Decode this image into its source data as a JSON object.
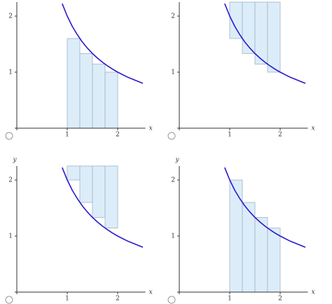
{
  "chart_data": [
    {
      "type": "riemann",
      "x_label": "x",
      "xlim": [
        0,
        2.55
      ],
      "ylim": [
        0,
        2.25
      ],
      "xticks": [
        1,
        2
      ],
      "yticks": [
        1,
        2
      ],
      "bars": {
        "x": [
          1,
          1.25,
          1.5,
          1.75
        ],
        "width": 0.25,
        "values": [
          1.6,
          1.333,
          1.143,
          1
        ],
        "shade": "below",
        "color": "#dcedf9"
      },
      "curve": {
        "x": [
          0.9,
          1,
          1.1,
          1.2,
          1.3,
          1.4,
          1.5,
          1.6,
          1.7,
          1.8,
          1.9,
          2,
          2.2,
          2.5
        ],
        "values": [
          2.222,
          2,
          1.818,
          1.667,
          1.538,
          1.429,
          1.333,
          1.25,
          1.176,
          1.111,
          1.053,
          1,
          0.909,
          0.8
        ],
        "color": "#2a1acc"
      }
    },
    {
      "type": "riemann",
      "x_label": "x",
      "xlim": [
        0,
        2.55
      ],
      "ylim": [
        0,
        2.25
      ],
      "xticks": [
        1,
        2
      ],
      "yticks": [
        1,
        2
      ],
      "bars": {
        "x": [
          1,
          1.25,
          1.5,
          1.75
        ],
        "width": 0.25,
        "values": [
          1.6,
          1.333,
          1.143,
          1
        ],
        "shade": "above",
        "color": "#dcedf9"
      },
      "curve": {
        "x": [
          0.9,
          1,
          1.1,
          1.2,
          1.3,
          1.4,
          1.5,
          1.6,
          1.7,
          1.8,
          1.9,
          2,
          2.2,
          2.5
        ],
        "values": [
          2.222,
          2,
          1.818,
          1.667,
          1.538,
          1.429,
          1.333,
          1.25,
          1.176,
          1.111,
          1.053,
          1,
          0.909,
          0.8
        ],
        "color": "#2a1acc"
      }
    },
    {
      "type": "riemann",
      "x_label": "x",
      "y_label": "y",
      "xlim": [
        0,
        2.55
      ],
      "ylim": [
        0,
        2.25
      ],
      "xticks": [
        1,
        2
      ],
      "yticks": [
        1,
        2
      ],
      "bars": {
        "x": [
          1,
          1.25,
          1.5,
          1.75
        ],
        "width": 0.25,
        "values": [
          2,
          1.6,
          1.333,
          1.143
        ],
        "shade": "above",
        "color": "#dcedf9"
      },
      "curve": {
        "x": [
          0.9,
          1,
          1.1,
          1.2,
          1.3,
          1.4,
          1.5,
          1.6,
          1.7,
          1.8,
          1.9,
          2,
          2.2,
          2.5
        ],
        "values": [
          2.222,
          2,
          1.818,
          1.667,
          1.538,
          1.429,
          1.333,
          1.25,
          1.176,
          1.111,
          1.053,
          1,
          0.909,
          0.8
        ],
        "color": "#2a1acc"
      }
    },
    {
      "type": "riemann",
      "x_label": "x",
      "y_label": "y",
      "xlim": [
        0,
        2.55
      ],
      "ylim": [
        0,
        2.25
      ],
      "xticks": [
        1,
        2
      ],
      "yticks": [
        1,
        2
      ],
      "bars": {
        "x": [
          1,
          1.25,
          1.5,
          1.75
        ],
        "width": 0.25,
        "values": [
          2,
          1.6,
          1.333,
          1.143
        ],
        "shade": "below",
        "color": "#dcedf9"
      },
      "curve": {
        "x": [
          0.9,
          1,
          1.1,
          1.2,
          1.3,
          1.4,
          1.5,
          1.6,
          1.7,
          1.8,
          1.9,
          2,
          2.2,
          2.5
        ],
        "values": [
          2.222,
          2,
          1.818,
          1.667,
          1.538,
          1.429,
          1.333,
          1.25,
          1.176,
          1.111,
          1.053,
          1,
          0.909,
          0.8
        ],
        "color": "#2a1acc"
      }
    }
  ]
}
